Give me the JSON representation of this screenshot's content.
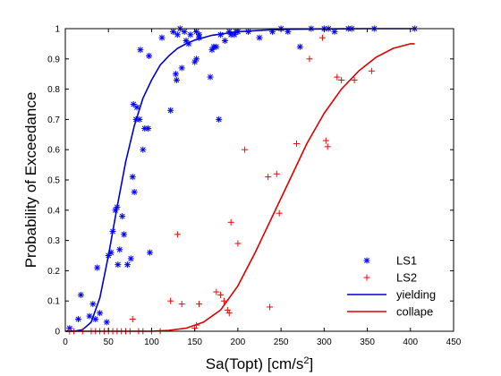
{
  "chart_data": {
    "type": "scatter",
    "title": "",
    "xlabel": {
      "base": "Sa(Topt) [cm/s",
      "sup": "2",
      "tail": "]"
    },
    "ylabel": "Probability of Exceedance",
    "xlim": [
      0,
      450
    ],
    "ylim": [
      0,
      1
    ],
    "xticks": [
      0,
      50,
      100,
      150,
      200,
      250,
      300,
      350,
      400,
      450
    ],
    "yticks": [
      0,
      0.1,
      0.2,
      0.3,
      0.4,
      0.5,
      0.6,
      0.7,
      0.8,
      0.9,
      1
    ],
    "xtick_labels": [
      "0",
      "50",
      "100",
      "150",
      "200",
      "250",
      "300",
      "350",
      "400",
      "450"
    ],
    "ytick_labels": [
      "0",
      "0.1",
      "0.2",
      "0.3",
      "0.4",
      "0.5",
      "0.6",
      "0.7",
      "0.8",
      "0.9",
      "1"
    ],
    "grid": false,
    "legend_position": "bottom-right",
    "series": [
      {
        "name": "LS1",
        "kind": "points",
        "marker": "asterisk",
        "color": "#0000ff",
        "points": [
          [
            5,
            0.01
          ],
          [
            15,
            0.04
          ],
          [
            18,
            0.12
          ],
          [
            28,
            0.05
          ],
          [
            32,
            0.09
          ],
          [
            35,
            0.04
          ],
          [
            37,
            0.21
          ],
          [
            40,
            0.06
          ],
          [
            48,
            0.03
          ],
          [
            50,
            0.25
          ],
          [
            53,
            0.26
          ],
          [
            55,
            0.33
          ],
          [
            58,
            0.4
          ],
          [
            60,
            0.41
          ],
          [
            61,
            0.22
          ],
          [
            63,
            0.27
          ],
          [
            66,
            0.38
          ],
          [
            68,
            0.32
          ],
          [
            72,
            0.22
          ],
          [
            76,
            0.24
          ],
          [
            78,
            0.51
          ],
          [
            79,
            0.75
          ],
          [
            80,
            0.46
          ],
          [
            82,
            0.7
          ],
          [
            83,
            0.74
          ],
          [
            86,
            0.7
          ],
          [
            87,
            0.93
          ],
          [
            90,
            0.6
          ],
          [
            92,
            0.67
          ],
          [
            96,
            0.67
          ],
          [
            97,
            0.91
          ],
          [
            98,
            0.26
          ],
          [
            112,
            0.97
          ],
          [
            122,
            0.73
          ],
          [
            125,
            0.99
          ],
          [
            128,
            0.85
          ],
          [
            129,
            0.83
          ],
          [
            130,
            0.98
          ],
          [
            133,
            1.0
          ],
          [
            135,
            0.87
          ],
          [
            138,
            0.99
          ],
          [
            140,
            0.96
          ],
          [
            143,
            0.95
          ],
          [
            145,
            0.98
          ],
          [
            150,
            0.89
          ],
          [
            152,
            0.9
          ],
          [
            152,
            0.99
          ],
          [
            155,
            0.98
          ],
          [
            155,
            0.97
          ],
          [
            168,
            0.84
          ],
          [
            170,
            0.93
          ],
          [
            172,
            0.94
          ],
          [
            175,
            0.94
          ],
          [
            178,
            0.7
          ],
          [
            180,
            0.98
          ],
          [
            185,
            0.96
          ],
          [
            190,
            0.99
          ],
          [
            192,
            0.98
          ],
          [
            196,
            0.98
          ],
          [
            198,
            0.99
          ],
          [
            200,
            0.99
          ],
          [
            212,
            0.99
          ],
          [
            225,
            0.97
          ],
          [
            240,
            0.99
          ],
          [
            250,
            1.0
          ],
          [
            258,
            0.99
          ],
          [
            272,
            0.94
          ],
          [
            285,
            1.0
          ],
          [
            300,
            1.0
          ],
          [
            305,
            1.0
          ],
          [
            312,
            0.99
          ],
          [
            328,
            1.0
          ],
          [
            332,
            1.0
          ],
          [
            358,
            1.0
          ],
          [
            405,
            1.0
          ]
        ]
      },
      {
        "name": "LS2",
        "kind": "points",
        "marker": "plus",
        "color": "#ff0000",
        "points": [
          [
            5,
            0
          ],
          [
            10,
            0
          ],
          [
            20,
            0
          ],
          [
            30,
            0
          ],
          [
            35,
            0
          ],
          [
            40,
            0
          ],
          [
            45,
            0
          ],
          [
            50,
            0
          ],
          [
            55,
            0
          ],
          [
            60,
            0
          ],
          [
            65,
            0
          ],
          [
            70,
            0
          ],
          [
            75,
            0
          ],
          [
            78,
            0.04
          ],
          [
            85,
            0
          ],
          [
            90,
            0
          ],
          [
            100,
            0
          ],
          [
            110,
            0
          ],
          [
            122,
            0.1
          ],
          [
            130,
            0.32
          ],
          [
            135,
            0.09
          ],
          [
            150,
            0.01
          ],
          [
            152,
            0.02
          ],
          [
            155,
            0.09
          ],
          [
            175,
            0.13
          ],
          [
            180,
            0.12
          ],
          [
            184,
            0.1
          ],
          [
            188,
            0.07
          ],
          [
            190,
            0.06
          ],
          [
            192,
            0.36
          ],
          [
            200,
            0.29
          ],
          [
            208,
            0.6
          ],
          [
            235,
            0.51
          ],
          [
            237,
            0.08
          ],
          [
            245,
            0.52
          ],
          [
            248,
            0.39
          ],
          [
            268,
            0.62
          ],
          [
            283,
            0.9
          ],
          [
            298,
            0.97
          ],
          [
            302,
            0.63
          ],
          [
            304,
            0.61
          ],
          [
            315,
            0.84
          ],
          [
            320,
            0.83
          ],
          [
            335,
            0.83
          ],
          [
            355,
            0.86
          ],
          [
            405,
            1.0
          ]
        ]
      },
      {
        "name": "yielding",
        "kind": "curve",
        "color": "#0000cc",
        "points": [
          [
            0,
            0.0
          ],
          [
            10,
            0.0
          ],
          [
            20,
            0.005
          ],
          [
            30,
            0.03
          ],
          [
            40,
            0.11
          ],
          [
            50,
            0.25
          ],
          [
            60,
            0.41
          ],
          [
            70,
            0.56
          ],
          [
            80,
            0.68
          ],
          [
            90,
            0.77
          ],
          [
            100,
            0.83
          ],
          [
            110,
            0.88
          ],
          [
            120,
            0.91
          ],
          [
            130,
            0.935
          ],
          [
            140,
            0.95
          ],
          [
            150,
            0.962
          ],
          [
            170,
            0.978
          ],
          [
            200,
            0.99
          ],
          [
            230,
            0.995
          ],
          [
            260,
            0.998
          ],
          [
            300,
            0.999
          ],
          [
            350,
            1.0
          ],
          [
            405,
            1.0
          ]
        ]
      },
      {
        "name": "collape",
        "kind": "curve",
        "color": "#dd0000",
        "points": [
          [
            0,
            0.0
          ],
          [
            60,
            0.0
          ],
          [
            100,
            0.0
          ],
          [
            120,
            0.003
          ],
          [
            140,
            0.01
          ],
          [
            160,
            0.03
          ],
          [
            180,
            0.07
          ],
          [
            200,
            0.15
          ],
          [
            220,
            0.26
          ],
          [
            240,
            0.38
          ],
          [
            260,
            0.5
          ],
          [
            280,
            0.62
          ],
          [
            300,
            0.72
          ],
          [
            320,
            0.8
          ],
          [
            340,
            0.86
          ],
          [
            360,
            0.905
          ],
          [
            380,
            0.935
          ],
          [
            400,
            0.95
          ],
          [
            405,
            0.95
          ]
        ]
      }
    ]
  }
}
